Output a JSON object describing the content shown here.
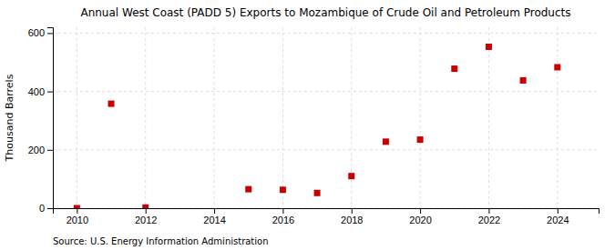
{
  "chart_data": {
    "type": "scatter",
    "title": "Annual West Coast (PADD 5) Exports to Mozambique of Crude Oil and Petroleum Products",
    "ylabel": "Thousand Barrels",
    "source": "Source: U.S. Energy Information Administration",
    "x": [
      2010,
      2011,
      2012,
      2015,
      2016,
      2017,
      2018,
      2019,
      2020,
      2021,
      2022,
      2023,
      2024
    ],
    "values": [
      0,
      358,
      2,
      65,
      63,
      52,
      110,
      228,
      235,
      478,
      553,
      438,
      483
    ],
    "xlim": [
      2009.3,
      2025.2
    ],
    "ylim": [
      0,
      620
    ],
    "xticks": [
      2010,
      2012,
      2014,
      2016,
      2018,
      2020,
      2022,
      2024
    ],
    "yticks": [
      0,
      200,
      400,
      600
    ],
    "color": "#cc0000",
    "marker": "square",
    "grid": true
  }
}
